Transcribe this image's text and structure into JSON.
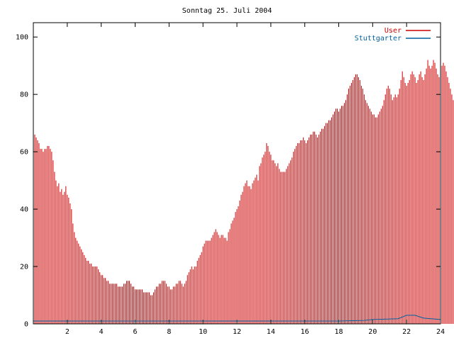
{
  "chart_data": {
    "type": "bar",
    "title": "Sonntag 25. Juli 2004",
    "xlabel": "",
    "ylabel": "",
    "xlim": [
      0,
      24
    ],
    "ylim": [
      0,
      105
    ],
    "x_ticks": [
      2,
      4,
      6,
      8,
      10,
      12,
      14,
      16,
      18,
      20,
      22,
      24
    ],
    "y_ticks": [
      0,
      20,
      40,
      60,
      80,
      100
    ],
    "grid": false,
    "legend_position": "top-right",
    "bar_interval_minutes": 5,
    "series": [
      {
        "name": "User",
        "type": "bar",
        "color": "#cc0000",
        "values": [
          73,
          66,
          65,
          64,
          63,
          61,
          61,
          60,
          61,
          61,
          62,
          62,
          61,
          60,
          57,
          53,
          50,
          48,
          49,
          46,
          47,
          45,
          46,
          48,
          45,
          44,
          42,
          40,
          35,
          32,
          30,
          29,
          28,
          27,
          26,
          25,
          24,
          23,
          22,
          22,
          21,
          21,
          20,
          20,
          20,
          20,
          19,
          18,
          17,
          17,
          16,
          16,
          15,
          15,
          14,
          14,
          14,
          14,
          14,
          14,
          13,
          13,
          13,
          13,
          14,
          14,
          15,
          15,
          15,
          14,
          13,
          13,
          12,
          12,
          12,
          12,
          12,
          12,
          11,
          11,
          11,
          11,
          11,
          10,
          10,
          11,
          12,
          13,
          13,
          14,
          14,
          15,
          15,
          15,
          14,
          13,
          13,
          12,
          12,
          13,
          13,
          14,
          14,
          15,
          15,
          14,
          13,
          14,
          15,
          17,
          18,
          19,
          20,
          19,
          20,
          20,
          22,
          23,
          24,
          25,
          27,
          28,
          29,
          29,
          29,
          29,
          30,
          31,
          32,
          33,
          32,
          31,
          30,
          31,
          31,
          30,
          30,
          29,
          32,
          33,
          35,
          36,
          37,
          39,
          40,
          41,
          43,
          45,
          46,
          48,
          49,
          50,
          48,
          48,
          47,
          49,
          50,
          51,
          52,
          50,
          55,
          56,
          58,
          59,
          60,
          63,
          62,
          60,
          59,
          57,
          57,
          56,
          55,
          56,
          54,
          53,
          53,
          53,
          53,
          54,
          55,
          56,
          57,
          58,
          60,
          61,
          62,
          63,
          63,
          64,
          64,
          65,
          64,
          63,
          64,
          65,
          66,
          66,
          67,
          67,
          66,
          65,
          66,
          67,
          68,
          68,
          69,
          70,
          70,
          71,
          71,
          72,
          73,
          74,
          75,
          75,
          74,
          75,
          76,
          76,
          77,
          78,
          80,
          82,
          83,
          84,
          85,
          86,
          87,
          87,
          86,
          85,
          83,
          82,
          80,
          78,
          77,
          76,
          75,
          74,
          73,
          73,
          72,
          72,
          73,
          74,
          75,
          76,
          78,
          80,
          82,
          83,
          82,
          80,
          78,
          79,
          80,
          79,
          80,
          82,
          85,
          88,
          86,
          84,
          83,
          84,
          85,
          87,
          88,
          87,
          86,
          84,
          85,
          87,
          88,
          86,
          85,
          87,
          89,
          92,
          90,
          89,
          90,
          92,
          91,
          89,
          87,
          86,
          88,
          90,
          91,
          90,
          88,
          86,
          84,
          82,
          80,
          78,
          76,
          75,
          74,
          74,
          73,
          75
        ]
      },
      {
        "name": "Stuttgarter",
        "type": "line",
        "color": "#0060a0",
        "points": [
          [
            0,
            1
          ],
          [
            1.7,
            1
          ],
          [
            18,
            1
          ],
          [
            19.5,
            1.2
          ],
          [
            20,
            1.5
          ],
          [
            21.5,
            1.8
          ],
          [
            22,
            3
          ],
          [
            22.5,
            3
          ],
          [
            23,
            2
          ],
          [
            24,
            1.5
          ]
        ]
      }
    ]
  }
}
